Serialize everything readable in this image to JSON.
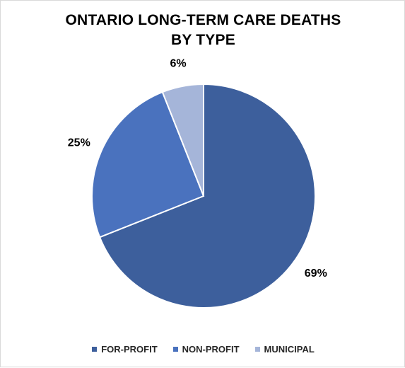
{
  "chart_data": {
    "type": "pie",
    "title": "ONTARIO LONG-TERM CARE DEATHS BY TYPE",
    "categories": [
      "FOR-PROFIT",
      "NON-PROFIT",
      "MUNICIPAL"
    ],
    "values": [
      69,
      25,
      6
    ],
    "value_labels": [
      "69%",
      "25%",
      "6%"
    ],
    "colors": [
      "#3d5f9c",
      "#4a72be",
      "#a5b5d9"
    ],
    "legend_position": "bottom",
    "start_angle": "12 o'clock",
    "direction": "clockwise"
  }
}
